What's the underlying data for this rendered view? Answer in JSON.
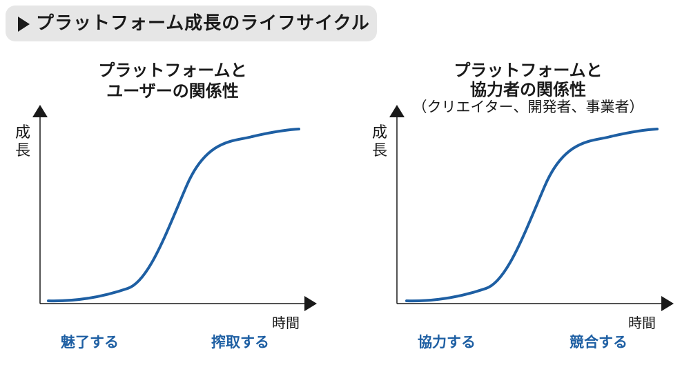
{
  "header": {
    "title": "プラットフォーム成長のライフサイクル"
  },
  "colors": {
    "curve": "#1e5fa3",
    "axis": "#1a1a1a",
    "header_bg": "#e6e6e6",
    "phase_text": "#1e5fa3"
  },
  "panels": [
    {
      "title_line1": "プラットフォームと",
      "title_line2": "ユーザーの関係性",
      "subtitle": "",
      "ylabel": "成長",
      "xlabel": "時間",
      "phases": [
        "魅了する",
        "搾取する"
      ]
    },
    {
      "title_line1": "プラットフォームと",
      "title_line2": "協力者の関係性",
      "subtitle": "（クリエイター、開発者、事業者）",
      "ylabel": "成長",
      "xlabel": "時間",
      "phases": [
        "協力する",
        "競合する"
      ]
    }
  ]
}
